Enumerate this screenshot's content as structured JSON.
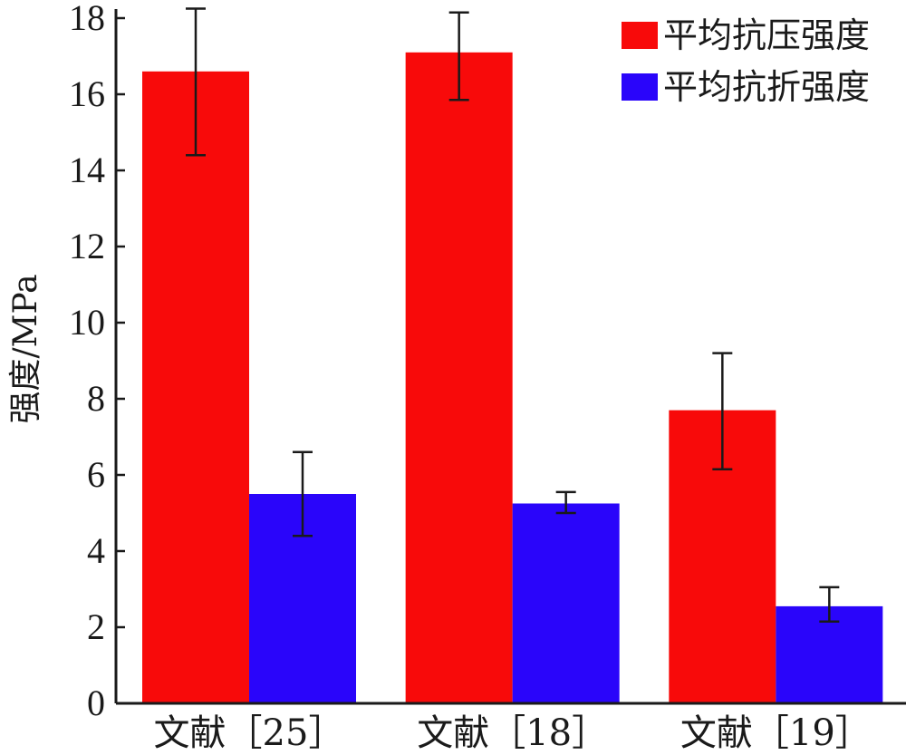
{
  "chart_data": {
    "type": "bar",
    "categories": [
      "文献［25］",
      "文献［18］",
      "文献［19］"
    ],
    "series": [
      {
        "name": "平均抗压强度",
        "color": "#f80a0a",
        "values": [
          16.6,
          17.1,
          7.7
        ],
        "error_low": [
          14.4,
          15.85,
          6.15
        ],
        "error_high": [
          18.25,
          18.15,
          9.2
        ]
      },
      {
        "name": "平均抗折强度",
        "color": "#2a05fa",
        "values": [
          5.5,
          5.25,
          2.55
        ],
        "error_low": [
          4.4,
          5.0,
          2.15
        ],
        "error_high": [
          6.6,
          5.55,
          3.05
        ]
      }
    ],
    "title": "",
    "xlabel": "",
    "ylabel": "强度/MPa",
    "ylim": [
      0,
      18
    ],
    "yticks": [
      0,
      2,
      4,
      6,
      8,
      10,
      12,
      14,
      16,
      18
    ],
    "grid": false,
    "legend_position": "top-right"
  }
}
